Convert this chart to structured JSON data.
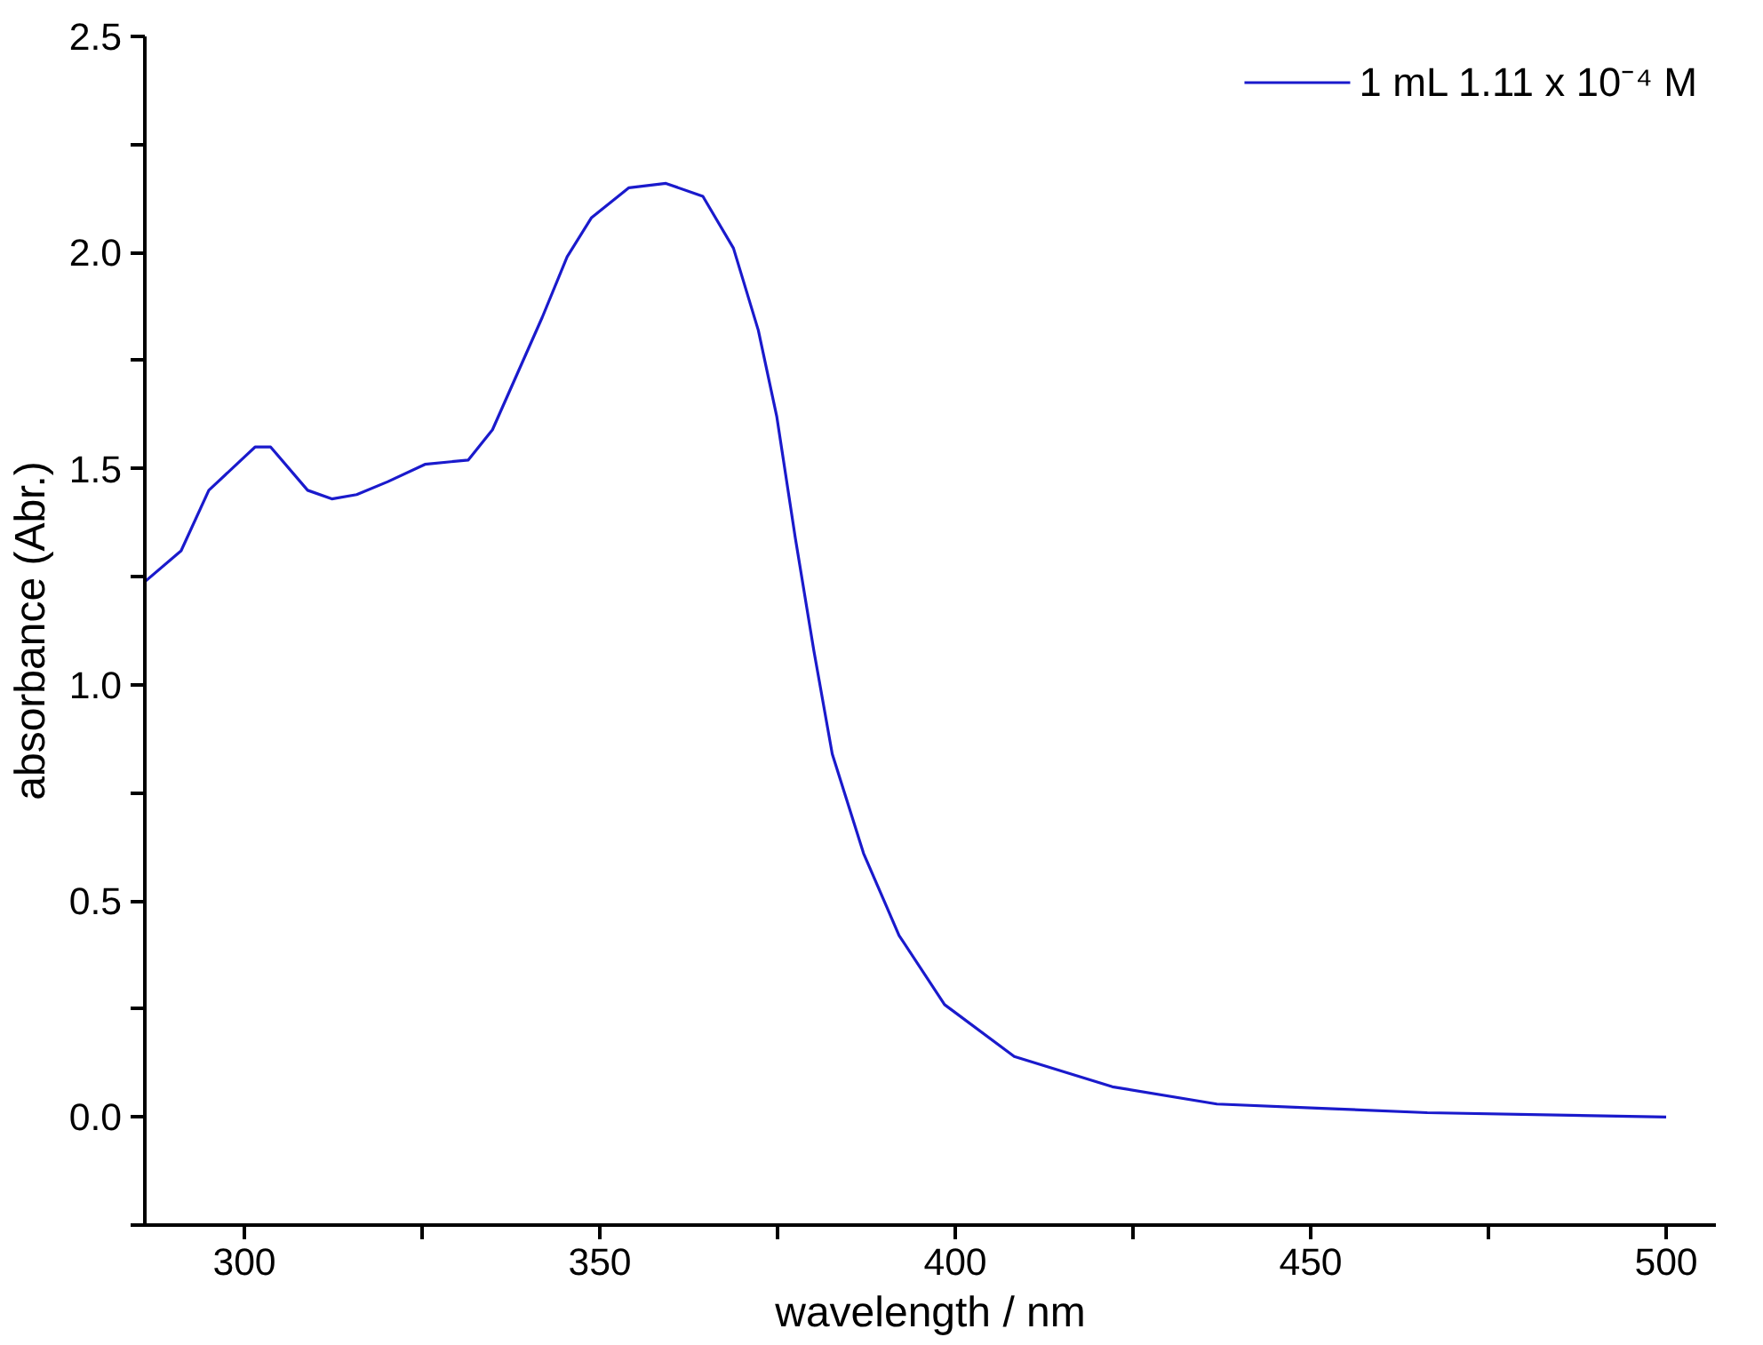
{
  "chart_data": {
    "type": "line",
    "xlabel": "wavelength / nm",
    "ylabel": "absorbance (Abr.)",
    "xlim": [
      286,
      507
    ],
    "ylim": [
      -0.25,
      2.5
    ],
    "xticks": [
      300,
      {
        "value": 325,
        "label": null
      },
      350,
      {
        "value": 375,
        "label": null
      },
      400,
      {
        "value": 425,
        "label": null
      },
      450,
      {
        "value": 475,
        "label": null
      },
      500
    ],
    "yticks": [
      {
        "value": -0.25,
        "label": null
      },
      {
        "value": 0,
        "label": "0.0"
      },
      {
        "value": 0.25,
        "label": null
      },
      0.5,
      {
        "value": 0.75,
        "label": null
      },
      {
        "value": 1,
        "label": "1.0"
      },
      {
        "value": 1.25,
        "label": null
      },
      1.5,
      {
        "value": 1.75,
        "label": null
      },
      {
        "value": 2,
        "label": "2.0"
      },
      {
        "value": 2.25,
        "label": null
      },
      2.5
    ],
    "grid": false,
    "legend": "top right",
    "marker": "none",
    "line_style": "solid",
    "series": [
      {
        "name": "1 mL 1.11 x 10⁻⁴ M",
        "color": "#1a1acc",
        "x": [
          286.1,
          291.1,
          295.0,
          301.5,
          303.7,
          308.9,
          312.3,
          315.8,
          320.2,
          325.4,
          331.5,
          334.9,
          338.4,
          341.9,
          345.4,
          348.8,
          354.1,
          359.3,
          364.5,
          368.8,
          372.3,
          374.9,
          377.5,
          380.1,
          382.7,
          387.1,
          392.1,
          398.5,
          408.3,
          422.1,
          436.8,
          451.6,
          466.4,
          500
        ],
        "values": [
          1.24,
          1.31,
          1.45,
          1.55,
          1.55,
          1.45,
          1.43,
          1.44,
          1.47,
          1.51,
          1.52,
          1.59,
          1.72,
          1.85,
          1.99,
          2.08,
          2.15,
          2.16,
          2.13,
          2.01,
          1.82,
          1.62,
          1.34,
          1.08,
          0.84,
          0.61,
          0.42,
          0.26,
          0.14,
          0.07,
          0.03,
          0.02,
          0.01,
          0.0
        ]
      }
    ]
  }
}
